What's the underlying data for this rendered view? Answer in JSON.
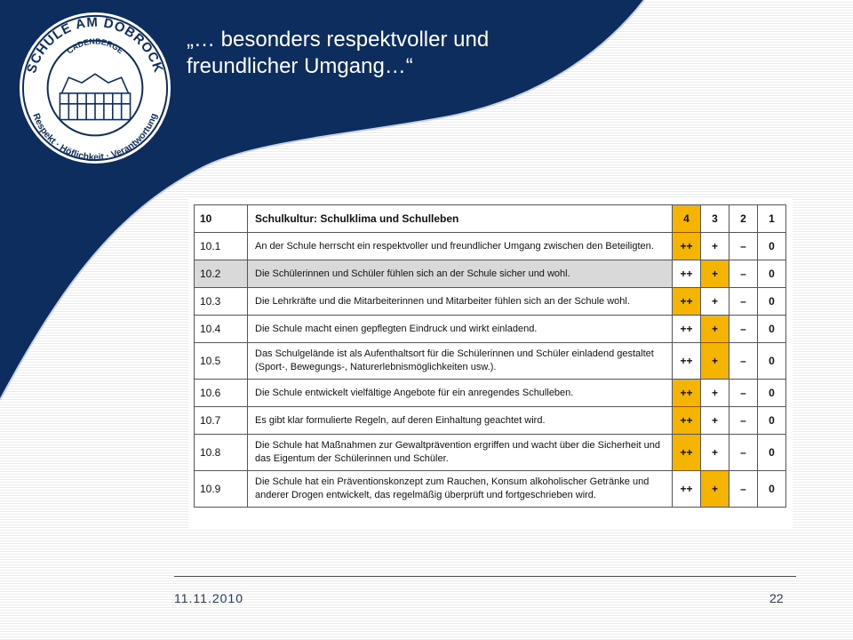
{
  "slide": {
    "title": "„… besonders respektvoller und freundlicher Umgang…“",
    "footer_date": "11.11.2010",
    "page_number": "22"
  },
  "logo": {
    "top_text": "SCHULE AM DOBROCK",
    "town_text": "CADENBERGE",
    "bottom_text": "Respekt · Höflichkeit · Verantwortung"
  },
  "colors": {
    "navy": "#0d2d5e",
    "highlight": "#f5b400",
    "grey_row": "#d9d9d9"
  },
  "table": {
    "header": {
      "num": "10",
      "text": "Schulkultur: Schulklima und Schulleben",
      "scores": [
        "4",
        "3",
        "2",
        "1"
      ]
    },
    "rows": [
      {
        "num": "10.1",
        "text": "An der Schule herrscht ein respektvoller und freundlicher Umgang zwischen den Beteiligten.",
        "scores": [
          "++",
          "+",
          "–",
          "0"
        ]
      },
      {
        "num": "10.2",
        "text": "Die Schülerinnen und Schüler fühlen sich an der Schule sicher und wohl.",
        "scores": [
          "++",
          "+",
          "–",
          "0"
        ]
      },
      {
        "num": "10.3",
        "text": "Die Lehrkräfte und die Mitarbeiterinnen und Mitarbeiter fühlen sich an der Schule wohl.",
        "scores": [
          "++",
          "+",
          "–",
          "0"
        ]
      },
      {
        "num": "10.4",
        "text": "Die Schule macht einen gepflegten Eindruck und wirkt einladend.",
        "scores": [
          "++",
          "+",
          "–",
          "0"
        ]
      },
      {
        "num": "10.5",
        "text": "Das Schulgelände ist als Aufenthaltsort für die Schülerinnen und Schüler einladend gestaltet (Sport-, Bewegungs-, Naturerlebnismöglichkeiten usw.).",
        "scores": [
          "++",
          "+",
          "–",
          "0"
        ]
      },
      {
        "num": "10.6",
        "text": "Die Schule entwickelt vielfältige Angebote für ein anregendes Schulleben.",
        "scores": [
          "++",
          "+",
          "–",
          "0"
        ]
      },
      {
        "num": "10.7",
        "text": "Es gibt klar formulierte Regeln, auf deren Einhaltung geachtet wird.",
        "scores": [
          "++",
          "+",
          "–",
          "0"
        ]
      },
      {
        "num": "10.8",
        "text": "Die Schule hat Maßnahmen zur Gewaltprävention ergriffen und wacht über die Sicherheit und das Eigentum der Schülerinnen und Schüler.",
        "scores": [
          "++",
          "+",
          "–",
          "0"
        ]
      },
      {
        "num": "10.9",
        "text": "Die Schule hat ein Präventionskonzept zum Rauchen, Konsum alkoholischer Getränke und anderer Drogen entwickelt, das regelmäßig überprüft und fortgeschrieben wird.",
        "scores": [
          "++",
          "+",
          "–",
          "0"
        ]
      }
    ]
  }
}
